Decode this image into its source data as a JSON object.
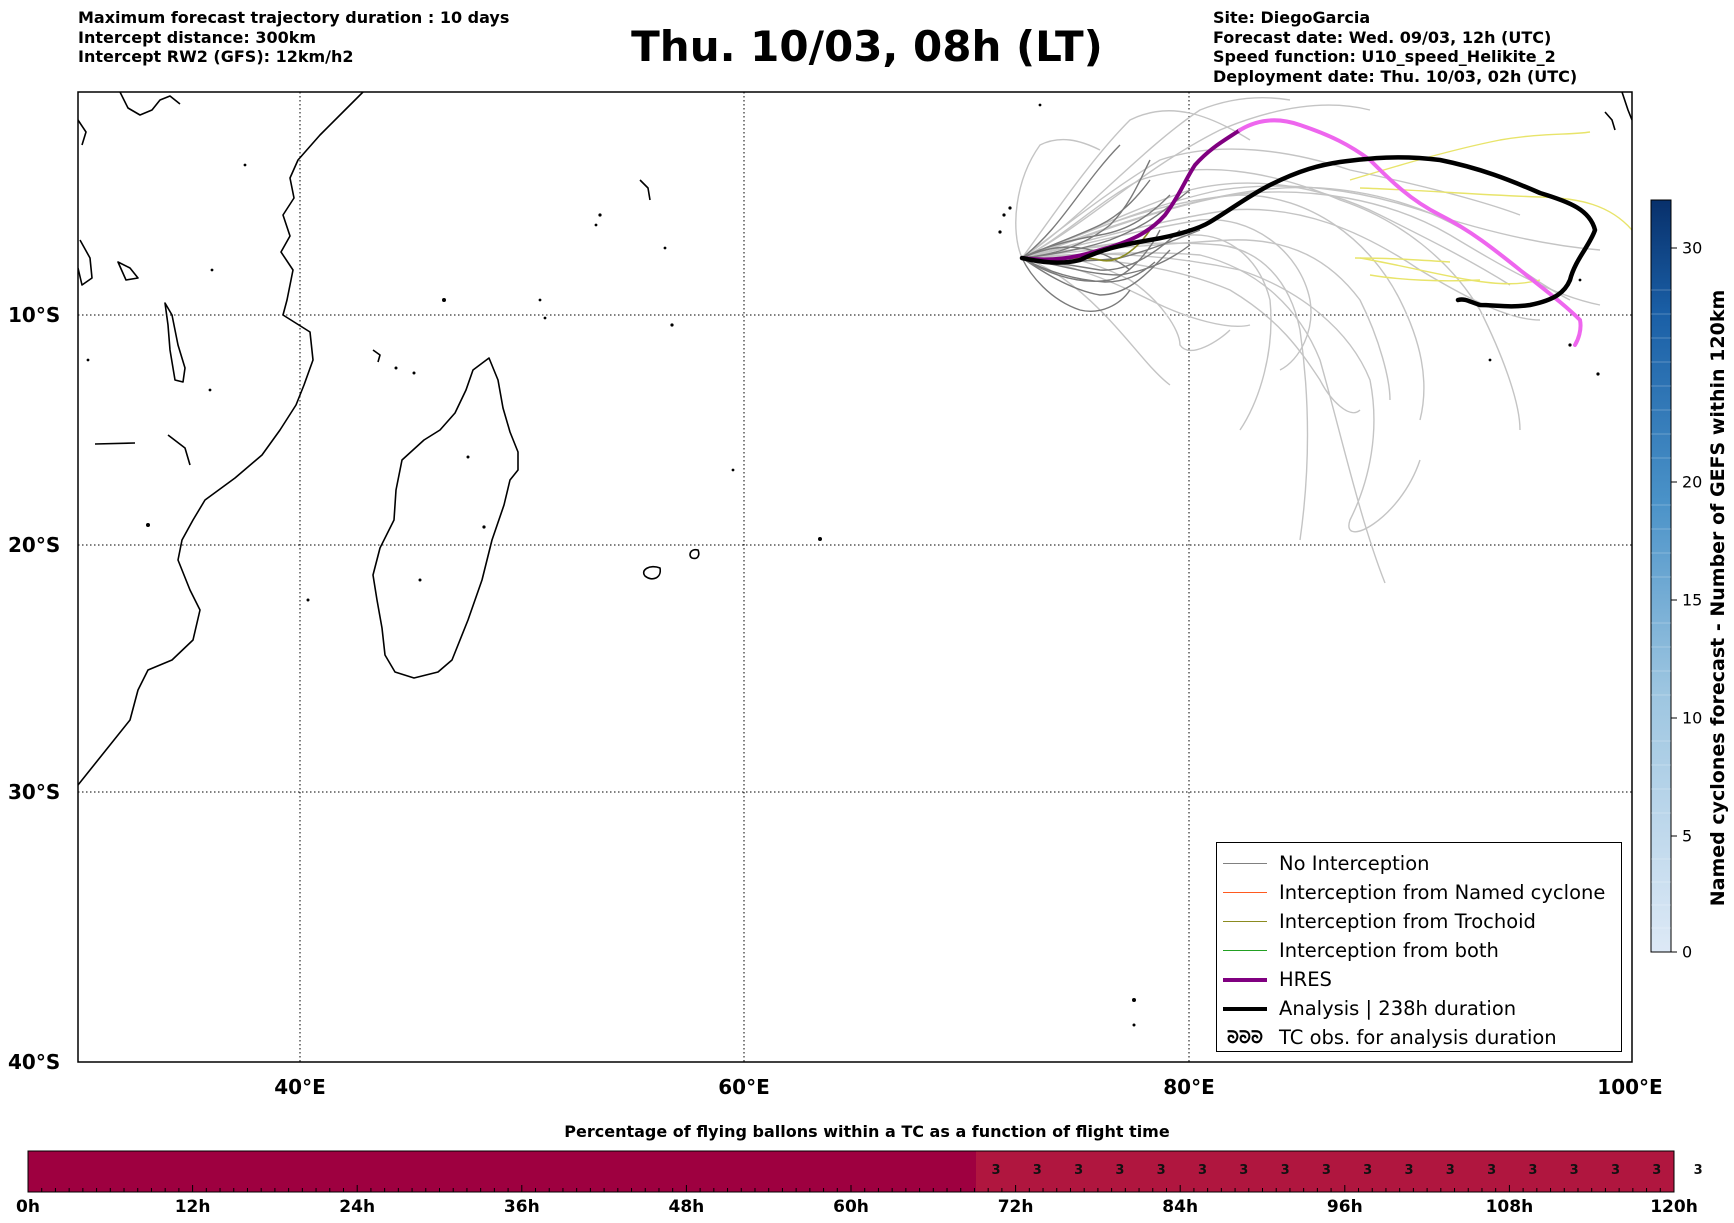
{
  "header_left": {
    "line1": "Maximum forecast trajectory duration : 10 days",
    "line2": "Intercept distance: 300km",
    "line3": "Intercept RW2 (GFS):  12km/h2"
  },
  "title": "Thu. 10/03, 08h (LT)",
  "header_right": {
    "line1": "Site: DiegoGarcia",
    "line2": "Forecast date: Wed. 09/03, 12h (UTC)",
    "line3": "Speed function: U10_speed_Helikite_2",
    "line4": "Deployment date: Thu. 10/03, 02h (UTC)"
  },
  "map": {
    "lat_labels": [
      "10°S",
      "20°S",
      "30°S",
      "40°S"
    ],
    "lon_labels": [
      "40°E",
      "60°E",
      "80°E",
      "100°E"
    ]
  },
  "legend": {
    "items": [
      {
        "label": "No Interception",
        "color": "#808080",
        "style": "thin"
      },
      {
        "label": "Interception from Named cyclone",
        "color": "#ff5a1f",
        "style": "thin"
      },
      {
        "label": "Interception from Trochoid",
        "color": "#8b8b20",
        "style": "thin"
      },
      {
        "label": "Interception from both",
        "color": "#22a022",
        "style": "thin"
      },
      {
        "label": "HRES",
        "color": "#800080",
        "style": "thick"
      },
      {
        "label": "Analysis | 238h duration",
        "color": "#000000",
        "style": "thick"
      },
      {
        "label": "TC obs. for analysis duration",
        "color": "#000000",
        "style": "symbol",
        "symbol": "ᘐᘐᘐ"
      }
    ]
  },
  "colorbar": {
    "label": "Named cyclones forecast - Number of GEFS within 120km",
    "ticks": [
      "0",
      "5",
      "10",
      "15",
      "20",
      "30"
    ]
  },
  "bottom_bar": {
    "title": "Percentage of flying ballons within a TC as a function of flight time",
    "time_labels": [
      "0h",
      "12h",
      "24h",
      "36h",
      "48h",
      "60h",
      "72h",
      "84h",
      "96h",
      "108h",
      "120h"
    ],
    "values": [
      "3",
      "3",
      "3",
      "3",
      "3",
      "3",
      "3",
      "3",
      "3",
      "3",
      "3",
      "3",
      "3",
      "3",
      "3",
      "3",
      "3",
      "3"
    ],
    "color_zero": "#9e0040",
    "color_value": "#b0163f"
  }
}
